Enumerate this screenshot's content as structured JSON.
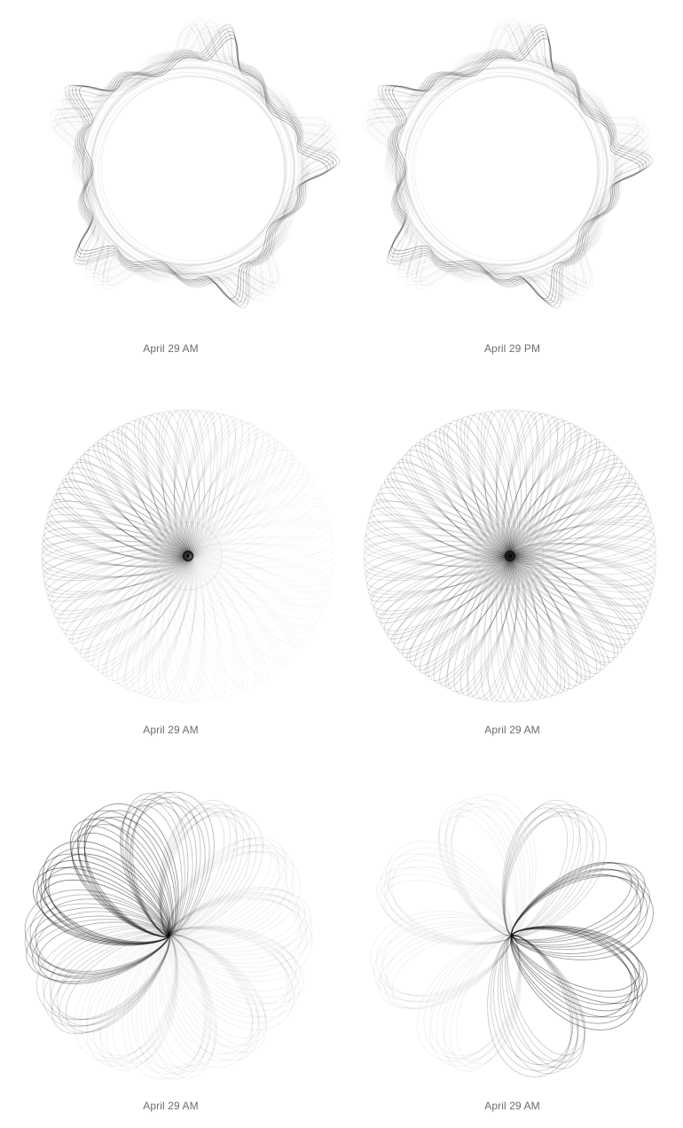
{
  "panels": [
    {
      "caption": "April 29 AM",
      "style": "star-spirograph",
      "points": 10,
      "dark_sector": "left"
    },
    {
      "caption": "April 29 PM",
      "style": "star-spirograph",
      "points": 10,
      "dark_sector": "right"
    },
    {
      "caption": "April 29 AM",
      "style": "radial-loops",
      "dark_sector": "left"
    },
    {
      "caption": "April 29 AM",
      "style": "radial-loops",
      "dark_sector": "all"
    },
    {
      "caption": "April 29 AM",
      "style": "petal-rose",
      "petals": 12,
      "dark_sector": "left"
    },
    {
      "caption": "April 29 AM",
      "style": "petal-rose",
      "petals": 8,
      "dark_sector": "right"
    }
  ],
  "colors": {
    "background": "#ffffff",
    "ink": "#111111",
    "caption": "#6d6d6d"
  }
}
